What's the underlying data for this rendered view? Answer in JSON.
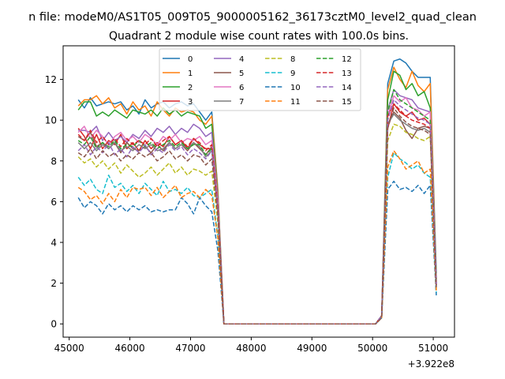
{
  "chart_data": {
    "type": "line",
    "suptitle": "n file: modeM0/AS1T05_009T05_9000005162_36173cztM0_level2_quad_clean",
    "title": "Quadrant 2 module wise count rates with 100.0s bins.",
    "xlabel": "",
    "ylabel": "",
    "offset_text": "+3.922e8",
    "xlim": [
      44900,
      51350
    ],
    "ylim": [
      -0.65,
      13.65
    ],
    "xticks": [
      45000,
      46000,
      47000,
      48000,
      49000,
      50000,
      51000
    ],
    "xtick_labels": [
      "45000",
      "46000",
      "47000",
      "48000",
      "49000",
      "50000",
      "51000"
    ],
    "yticks": [
      0,
      2,
      4,
      6,
      8,
      10,
      12
    ],
    "ytick_labels": [
      "0",
      "2",
      "4",
      "6",
      "8",
      "10",
      "12"
    ],
    "legend_position": "top-center",
    "x_first": [
      45150,
      45250,
      45350,
      45450,
      45550,
      45650,
      45750,
      45850,
      45950,
      46050,
      46150,
      46250,
      46350,
      46450,
      46550,
      46650,
      46750,
      46850,
      46950,
      47050,
      47150,
      47250,
      47350,
      47450,
      47550
    ],
    "x_second": [
      50050,
      50150,
      50250,
      50350,
      50450,
      50550,
      50650,
      50750,
      50850,
      50950,
      51050
    ],
    "series": [
      {
        "name": "0",
        "color": "#1f77b4",
        "dash": false,
        "first": [
          11.0,
          10.6,
          11.1,
          10.7,
          10.8,
          10.9,
          10.8,
          10.9,
          10.5,
          10.7,
          10.3,
          11.0,
          10.6,
          10.8,
          10.9,
          10.6,
          10.8,
          10.9,
          10.7,
          10.8,
          10.4,
          10.0,
          10.4,
          6.6,
          0.0
        ],
        "second": [
          0.0,
          0.4,
          11.8,
          12.9,
          13.0,
          12.8,
          12.4,
          12.1,
          12.1,
          12.1,
          2.5
        ]
      },
      {
        "name": "1",
        "color": "#ff7f0e",
        "dash": false,
        "first": [
          10.7,
          11.0,
          11.0,
          11.2,
          10.8,
          11.1,
          10.6,
          10.8,
          10.3,
          10.9,
          10.5,
          10.7,
          10.2,
          10.9,
          10.5,
          10.2,
          10.6,
          10.4,
          10.5,
          10.4,
          10.0,
          9.8,
          10.2,
          6.5,
          0.0
        ],
        "second": [
          0.0,
          0.4,
          11.5,
          12.6,
          12.0,
          11.6,
          12.4,
          11.7,
          11.4,
          11.8,
          2.2
        ]
      },
      {
        "name": "2",
        "color": "#2ca02c",
        "dash": false,
        "first": [
          10.5,
          10.9,
          10.9,
          10.2,
          10.4,
          10.2,
          10.5,
          10.3,
          10.1,
          10.5,
          10.4,
          10.3,
          10.5,
          10.2,
          10.6,
          10.3,
          10.5,
          10.2,
          10.4,
          10.3,
          10.2,
          9.6,
          9.8,
          6.2,
          0.0
        ],
        "second": [
          0.0,
          0.4,
          11.0,
          12.4,
          12.2,
          11.5,
          11.8,
          11.2,
          11.4,
          10.6,
          2.2
        ]
      },
      {
        "name": "3",
        "color": "#d62728",
        "dash": false,
        "first": [
          9.6,
          9.2,
          8.6,
          9.3,
          8.6,
          9.0,
          8.8,
          9.3,
          8.6,
          8.9,
          8.5,
          9.0,
          8.6,
          8.9,
          8.7,
          9.2,
          8.8,
          9.0,
          8.6,
          9.1,
          8.8,
          8.6,
          8.6,
          5.6,
          0.0
        ],
        "second": [
          0.0,
          0.4,
          9.6,
          10.8,
          10.4,
          10.2,
          10.4,
          10.0,
          10.1,
          9.8,
          2.0
        ]
      },
      {
        "name": "4",
        "color": "#9467bd",
        "dash": false,
        "first": [
          9.5,
          9.5,
          9.4,
          9.7,
          9.0,
          9.4,
          9.0,
          9.2,
          8.9,
          9.3,
          9.1,
          9.5,
          9.2,
          9.6,
          9.4,
          9.7,
          9.3,
          9.6,
          9.4,
          9.8,
          9.6,
          9.2,
          9.4,
          6.1,
          0.0
        ],
        "second": [
          0.0,
          0.4,
          10.5,
          11.5,
          11.2,
          11.1,
          11.0,
          10.6,
          10.5,
          10.4,
          2.1
        ]
      },
      {
        "name": "5",
        "color": "#8c564b",
        "dash": false,
        "first": [
          9.2,
          9.0,
          9.4,
          8.7,
          8.9,
          8.6,
          8.9,
          8.4,
          8.9,
          8.6,
          8.5,
          8.7,
          8.4,
          8.8,
          8.5,
          8.9,
          8.6,
          8.8,
          8.5,
          8.9,
          8.6,
          8.3,
          8.7,
          5.6,
          0.0
        ],
        "second": [
          0.0,
          0.4,
          9.8,
          10.4,
          10.1,
          9.5,
          9.1,
          9.6,
          9.7,
          9.6,
          1.9
        ]
      },
      {
        "name": "6",
        "color": "#e377c2",
        "dash": false,
        "first": [
          9.4,
          9.7,
          9.1,
          9.5,
          9.2,
          8.8,
          9.2,
          9.4,
          9.0,
          9.2,
          8.9,
          9.3,
          9.1,
          8.8,
          9.2,
          9.0,
          9.3,
          8.9,
          9.1,
          9.0,
          9.2,
          8.8,
          9.0,
          5.9,
          0.0
        ],
        "second": [
          0.0,
          0.4,
          10.2,
          11.2,
          10.9,
          11.1,
          10.6,
          10.5,
          10.2,
          10.4,
          2.0
        ]
      },
      {
        "name": "7",
        "color": "#7f7f7f",
        "dash": false,
        "first": [
          8.9,
          8.6,
          8.9,
          8.5,
          8.8,
          8.6,
          8.9,
          8.5,
          8.7,
          8.5,
          8.8,
          8.6,
          8.8,
          8.5,
          8.6,
          8.9,
          8.6,
          8.8,
          8.6,
          8.9,
          8.7,
          8.2,
          8.5,
          5.5,
          0.0
        ],
        "second": [
          0.0,
          0.4,
          9.8,
          10.3,
          10.0,
          9.8,
          9.6,
          9.5,
          9.6,
          9.4,
          1.8
        ]
      },
      {
        "name": "8",
        "color": "#bcbd22",
        "dash": true,
        "first": [
          8.2,
          7.9,
          8.1,
          7.7,
          8.0,
          7.6,
          7.9,
          7.4,
          7.8,
          7.5,
          7.2,
          7.4,
          7.7,
          7.3,
          7.6,
          7.9,
          7.4,
          7.7,
          7.3,
          7.6,
          7.5,
          7.3,
          7.5,
          5.0,
          0.0
        ],
        "second": [
          0.0,
          0.3,
          9.0,
          9.8,
          9.7,
          9.4,
          9.3,
          9.1,
          9.0,
          9.2,
          1.7
        ]
      },
      {
        "name": "9",
        "color": "#17becf",
        "dash": true,
        "first": [
          7.2,
          6.8,
          7.1,
          6.6,
          6.4,
          7.3,
          6.7,
          6.9,
          6.5,
          6.8,
          6.4,
          6.9,
          6.6,
          6.3,
          7.0,
          6.5,
          6.6,
          6.4,
          6.7,
          6.3,
          6.2,
          6.4,
          6.6,
          4.3,
          0.0
        ],
        "second": [
          0.0,
          0.3,
          7.2,
          8.4,
          8.1,
          7.9,
          7.6,
          7.8,
          7.4,
          7.2,
          1.5
        ]
      },
      {
        "name": "10",
        "color": "#1f77b4",
        "dash": true,
        "first": [
          6.2,
          5.7,
          6.0,
          5.8,
          5.4,
          5.9,
          5.6,
          5.8,
          5.5,
          5.8,
          5.6,
          5.8,
          5.5,
          5.6,
          5.5,
          5.6,
          5.6,
          6.2,
          5.9,
          5.4,
          6.2,
          5.8,
          5.5,
          3.6,
          0.0
        ],
        "second": [
          0.0,
          0.3,
          6.6,
          7.0,
          6.6,
          6.7,
          6.5,
          6.8,
          6.4,
          6.8,
          1.4
        ]
      },
      {
        "name": "11",
        "color": "#ff7f0e",
        "dash": true,
        "first": [
          6.7,
          6.5,
          6.1,
          6.3,
          5.9,
          6.4,
          6.0,
          6.6,
          6.2,
          6.7,
          6.6,
          6.7,
          6.3,
          6.7,
          6.2,
          6.5,
          6.8,
          6.2,
          6.4,
          6.5,
          6.2,
          6.6,
          6.3,
          4.2,
          0.0
        ],
        "second": [
          0.0,
          0.3,
          7.7,
          8.5,
          8.1,
          7.6,
          7.8,
          8.0,
          7.4,
          7.6,
          1.6
        ]
      },
      {
        "name": "12",
        "color": "#2ca02c",
        "dash": true,
        "first": [
          9.0,
          8.8,
          9.2,
          8.6,
          8.9,
          8.7,
          9.0,
          8.6,
          8.8,
          8.7,
          9.0,
          8.7,
          8.9,
          8.6,
          8.8,
          9.0,
          8.7,
          8.9,
          8.6,
          8.8,
          8.8,
          8.3,
          8.6,
          5.6,
          0.0
        ],
        "second": [
          0.0,
          0.4,
          10.4,
          11.5,
          11.0,
          10.8,
          10.6,
          10.4,
          10.2,
          10.0,
          2.0
        ]
      },
      {
        "name": "13",
        "color": "#d62728",
        "dash": true,
        "first": [
          9.3,
          9.0,
          9.5,
          8.9,
          9.2,
          8.8,
          9.1,
          8.7,
          9.1,
          8.8,
          9.0,
          8.8,
          9.1,
          8.7,
          9.0,
          9.2,
          8.8,
          9.0,
          8.7,
          9.1,
          8.9,
          8.5,
          8.8,
          5.7,
          0.0
        ],
        "second": [
          0.0,
          0.4,
          10.2,
          10.8,
          10.5,
          10.2,
          10.0,
          9.9,
          9.8,
          9.6,
          1.9
        ]
      },
      {
        "name": "14",
        "color": "#9467bd",
        "dash": true,
        "first": [
          8.5,
          8.8,
          8.3,
          8.7,
          8.4,
          8.9,
          8.3,
          8.6,
          8.2,
          8.7,
          8.4,
          8.8,
          8.3,
          8.6,
          8.4,
          8.8,
          8.5,
          8.7,
          8.3,
          8.6,
          8.4,
          8.1,
          8.5,
          5.5,
          0.0
        ],
        "second": [
          0.0,
          0.4,
          10.0,
          11.0,
          10.7,
          10.5,
          10.3,
          10.1,
          10.0,
          9.8,
          1.9
        ]
      },
      {
        "name": "15",
        "color": "#8c564b",
        "dash": true,
        "first": [
          8.4,
          8.2,
          8.6,
          8.1,
          8.5,
          8.2,
          8.4,
          8.0,
          8.3,
          8.1,
          8.4,
          8.2,
          8.4,
          8.0,
          8.2,
          8.5,
          8.1,
          8.3,
          8.0,
          8.3,
          8.2,
          7.8,
          8.1,
          5.3,
          0.0
        ],
        "second": [
          0.0,
          0.3,
          9.6,
          10.6,
          10.2,
          9.9,
          9.7,
          9.6,
          9.5,
          9.3,
          1.8
        ]
      }
    ]
  }
}
